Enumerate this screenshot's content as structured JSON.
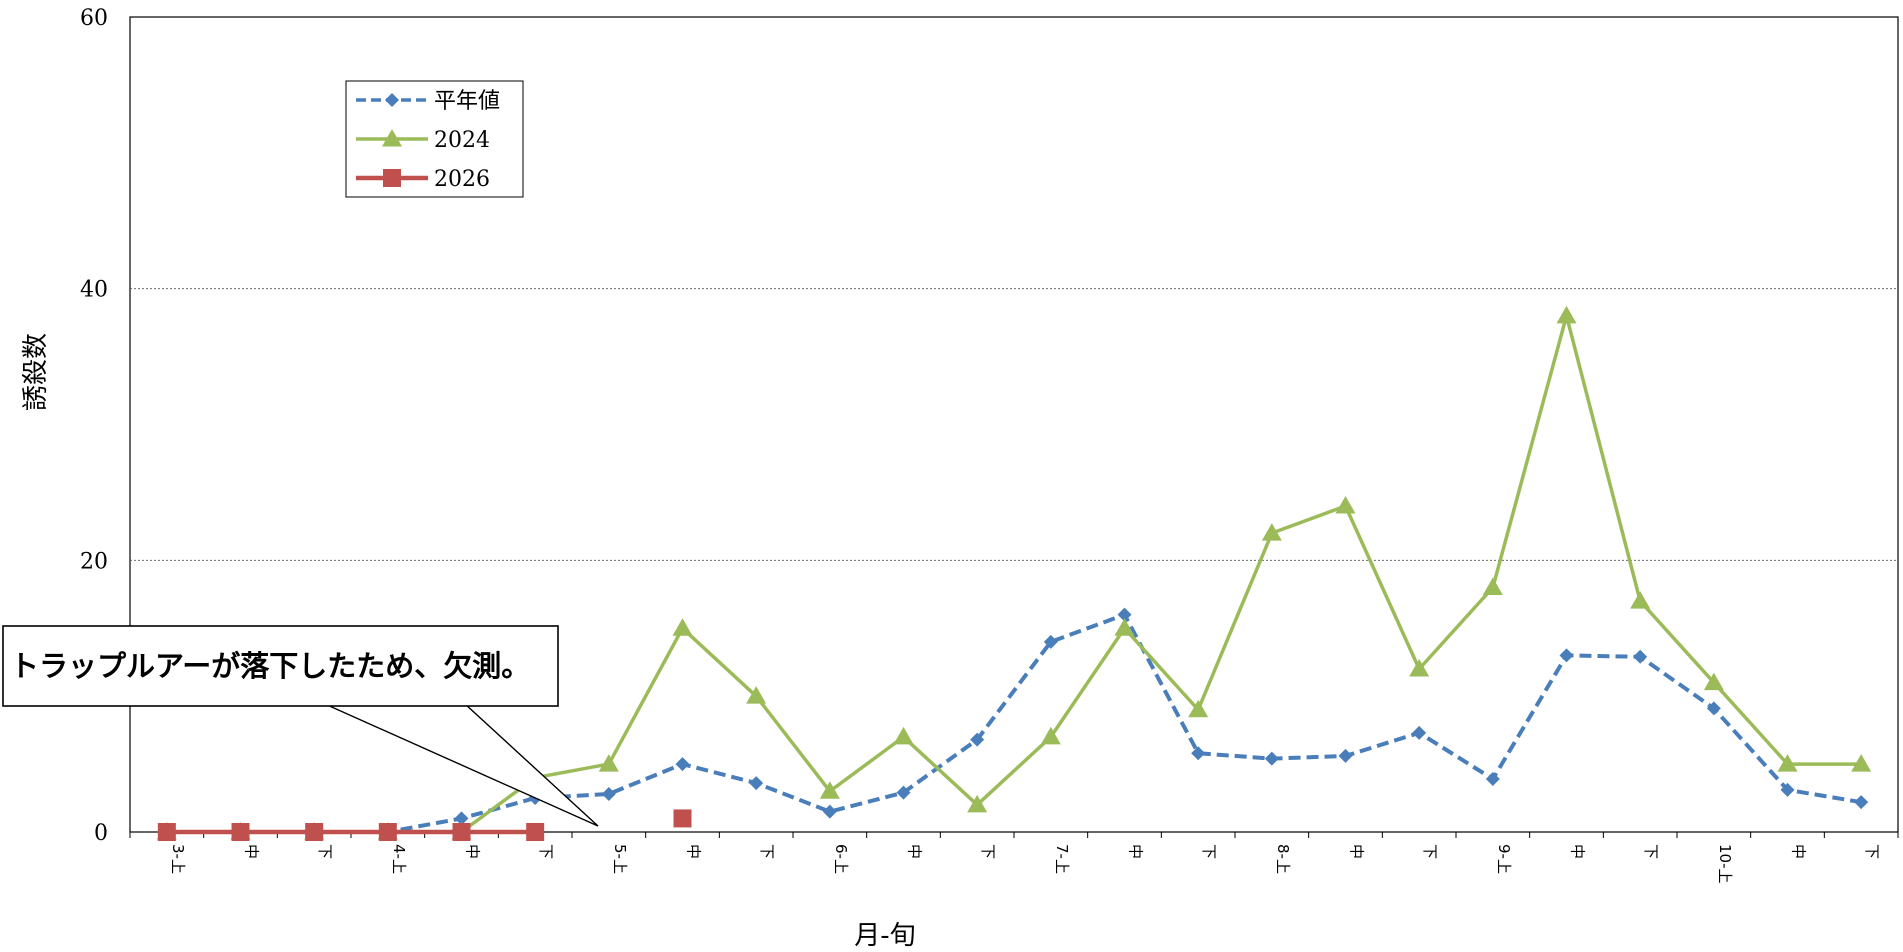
{
  "chart_data": {
    "type": "line",
    "xlabel": "月-旬",
    "ylabel": "誘殺数",
    "ylim": [
      0,
      60
    ],
    "yticks": [
      0,
      20,
      40,
      60
    ],
    "grid": "horizontal dotted at 20 and 40",
    "legend_position": "top-left",
    "categories": [
      "3-上",
      "中",
      "下",
      "4-上",
      "中",
      "下",
      "5-上",
      "中",
      "下",
      "6-上",
      "中",
      "下",
      "7-上",
      "中",
      "下",
      "8-上",
      "中",
      "下",
      "9-上",
      "中",
      "下",
      "10-上",
      "中",
      "下"
    ],
    "series": [
      {
        "name": "平年値",
        "color": "#4a7ebb",
        "style": "dashed",
        "marker": "diamond",
        "values": [
          0,
          0,
          0,
          0,
          1,
          2.5,
          2.8,
          5,
          3.6,
          1.5,
          2.9,
          6.8,
          14,
          16,
          5.8,
          5.4,
          5.6,
          7.3,
          3.9,
          13,
          12.9,
          9.1,
          3.1,
          2.2
        ]
      },
      {
        "name": "2024",
        "color": "#9bbb59",
        "style": "solid",
        "marker": "triangle",
        "values": [
          0,
          0,
          0,
          0,
          0,
          4,
          5,
          15,
          10,
          3,
          7,
          2,
          7,
          15,
          9,
          22,
          24,
          12,
          18,
          38,
          17,
          11,
          5,
          5
        ]
      },
      {
        "name": "2026",
        "color": "#c0504d",
        "style": "solid",
        "marker": "square",
        "values": [
          0,
          0,
          0,
          0,
          0,
          0,
          null,
          1,
          null,
          null,
          null,
          null,
          null,
          null,
          null,
          null,
          null,
          null,
          null,
          null,
          null,
          null,
          null,
          null
        ]
      }
    ],
    "annotation": {
      "text": "トラップルアーが落下したため、欠測。",
      "points_to_category_indices": [
        5,
        6
      ]
    }
  }
}
